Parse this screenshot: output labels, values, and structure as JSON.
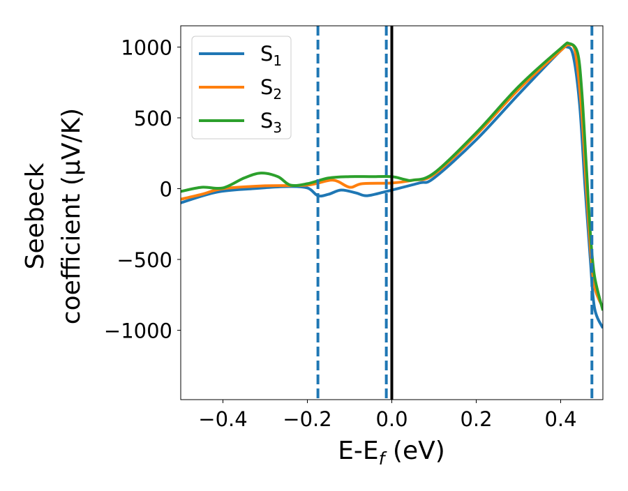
{
  "chart_data": {
    "type": "line",
    "xlabel": {
      "main": "E-E",
      "sub": "f",
      "tail": " (eV)"
    },
    "ylabel": {
      "line1": "Seebeck",
      "line2": "coefficient  (μV/K)"
    },
    "xlim": [
      -0.5,
      0.5
    ],
    "ylim": [
      -1490,
      1150
    ],
    "xticks": [
      -0.4,
      -0.2,
      0.0,
      0.2,
      0.4
    ],
    "xtick_labels": [
      "−0.4",
      "−0.2",
      "0.0",
      "0.2",
      "0.4"
    ],
    "yticks": [
      1000,
      500,
      0,
      -500,
      -1000
    ],
    "ytick_labels": [
      "1000",
      "500",
      "0",
      "−500",
      "−1000"
    ],
    "grid": false,
    "legend_position": "top-left",
    "vlines_dashed": [
      -0.175,
      -0.013,
      0.474
    ],
    "vline_dashed_color": "#1f77b4",
    "vline_solid": 0.0,
    "vline_solid_color": "#000000",
    "series": [
      {
        "name": "S",
        "sub": "1",
        "color": "#1f77b4",
        "x": [
          -0.5,
          -0.415,
          -0.33,
          -0.25,
          -0.2,
          -0.175,
          -0.15,
          -0.12,
          -0.085,
          -0.06,
          -0.02,
          0.0,
          0.065,
          0.1,
          0.2,
          0.3,
          0.395,
          0.415,
          0.43,
          0.445,
          0.458,
          0.47,
          0.48,
          0.5
        ],
        "y": [
          -100,
          -25,
          0,
          15,
          5,
          -50,
          -40,
          -10,
          -30,
          -50,
          -25,
          -10,
          40,
          75,
          345,
          665,
          960,
          1000,
          935,
          590,
          0,
          -490,
          -840,
          -985
        ]
      },
      {
        "name": "S",
        "sub": "2",
        "color": "#ff7f0e",
        "x": [
          -0.5,
          -0.45,
          -0.4,
          -0.3,
          -0.2,
          -0.14,
          -0.1,
          -0.07,
          0.0,
          0.05,
          0.1,
          0.2,
          0.3,
          0.4,
          0.42,
          0.435,
          0.45,
          0.46,
          0.47,
          0.48,
          0.5
        ],
        "y": [
          -75,
          -40,
          0,
          20,
          25,
          60,
          10,
          35,
          40,
          60,
          100,
          380,
          700,
          975,
          1015,
          960,
          540,
          50,
          -395,
          -690,
          -840
        ]
      },
      {
        "name": "S",
        "sub": "3",
        "color": "#2ca02c",
        "x": [
          -0.5,
          -0.45,
          -0.4,
          -0.35,
          -0.31,
          -0.27,
          -0.24,
          -0.2,
          -0.15,
          -0.1,
          -0.05,
          0.0,
          0.03,
          0.05,
          0.1,
          0.2,
          0.3,
          0.4,
          0.42,
          0.44,
          0.45,
          0.46,
          0.47,
          0.48,
          0.5
        ],
        "y": [
          -20,
          10,
          5,
          75,
          110,
          85,
          25,
          35,
          75,
          85,
          85,
          85,
          65,
          60,
          110,
          395,
          720,
          990,
          1025,
          960,
          690,
          200,
          -300,
          -615,
          -860
        ]
      }
    ]
  }
}
